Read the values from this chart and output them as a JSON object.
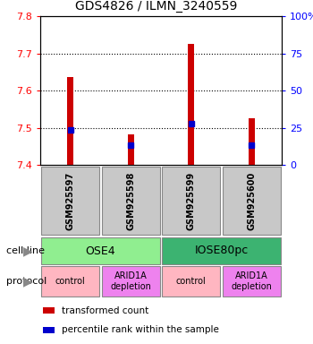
{
  "title": "GDS4826 / ILMN_3240559",
  "samples": [
    "GSM925597",
    "GSM925598",
    "GSM925599",
    "GSM925600"
  ],
  "bar_bottoms": [
    7.4,
    7.4,
    7.4,
    7.4
  ],
  "bar_tops": [
    7.635,
    7.482,
    7.725,
    7.525
  ],
  "blue_marks": [
    7.493,
    7.452,
    7.51,
    7.452
  ],
  "ylim": [
    7.4,
    7.8
  ],
  "yticks_left": [
    7.4,
    7.5,
    7.6,
    7.7,
    7.8
  ],
  "yticks_right": [
    0,
    25,
    50,
    75,
    100
  ],
  "cell_line_groups": [
    {
      "label": "OSE4",
      "start": 0,
      "end": 2,
      "color": "#90EE90"
    },
    {
      "label": "IOSE80pc",
      "start": 2,
      "end": 4,
      "color": "#3CB371"
    }
  ],
  "protocol_groups": [
    {
      "label": "control",
      "start": 0,
      "end": 1,
      "color": "#FFB6C1"
    },
    {
      "label": "ARID1A\ndepletion",
      "start": 1,
      "end": 2,
      "color": "#EE82EE"
    },
    {
      "label": "control",
      "start": 2,
      "end": 3,
      "color": "#FFB6C1"
    },
    {
      "label": "ARID1A\ndepletion",
      "start": 3,
      "end": 4,
      "color": "#EE82EE"
    }
  ],
  "bar_color": "#CC0000",
  "blue_color": "#0000CC",
  "sample_bg_color": "#C8C8C8",
  "cell_line_label": "cell line",
  "protocol_label": "protocol",
  "legend_items": [
    {
      "color": "#CC0000",
      "label": "transformed count"
    },
    {
      "color": "#0000CC",
      "label": "percentile rank within the sample"
    }
  ],
  "gridline_values": [
    7.5,
    7.6,
    7.7
  ],
  "bar_width": 0.1,
  "marker_size": 4
}
